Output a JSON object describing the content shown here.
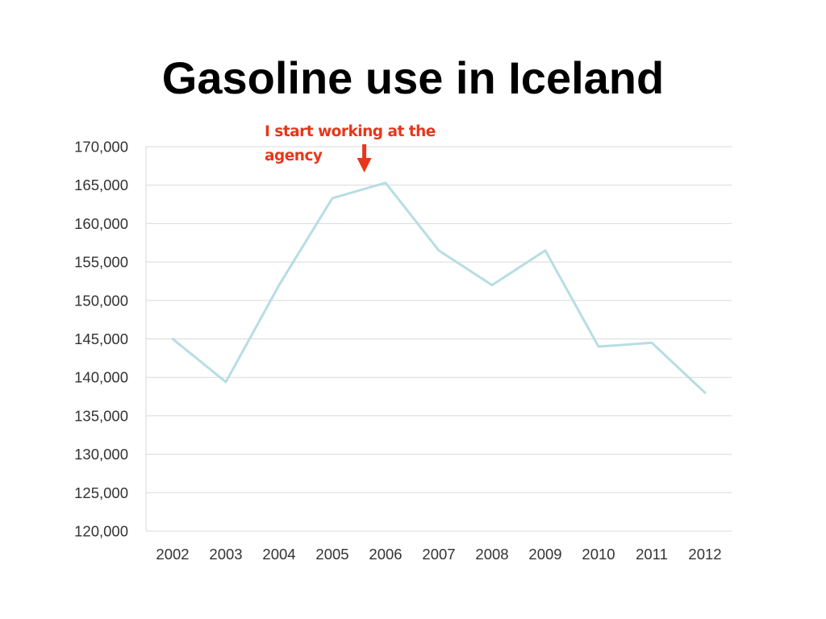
{
  "title": "Gasoline use in Iceland",
  "annotation": {
    "text": "I start working at the agency",
    "x_position": 2005.6,
    "color": "#e8361b"
  },
  "chart_data": {
    "type": "line",
    "title": "Gasoline use in Iceland",
    "xlabel": "",
    "ylabel": "",
    "categories": [
      "2002",
      "2003",
      "2004",
      "2005",
      "2006",
      "2007",
      "2008",
      "2009",
      "2010",
      "2011",
      "2012"
    ],
    "series": [
      {
        "values": [
          145000,
          139400,
          152000,
          163300,
          165300,
          156500,
          152000,
          156500,
          144000,
          144500,
          138000
        ],
        "color": "#b7dde4"
      }
    ],
    "ylim": [
      120000,
      170000
    ],
    "yticks": [
      120000,
      125000,
      130000,
      135000,
      140000,
      145000,
      150000,
      155000,
      160000,
      165000,
      170000
    ],
    "ytick_labels": [
      "120,000",
      "125,000",
      "130,000",
      "135,000",
      "140,000",
      "145,000",
      "150,000",
      "155,000",
      "160,000",
      "165,000",
      "170,000"
    ],
    "grid": true,
    "legend": "none"
  }
}
